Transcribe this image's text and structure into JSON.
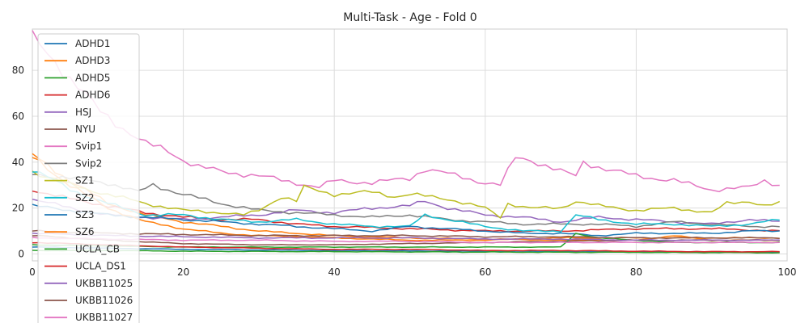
{
  "chart_data": {
    "type": "line",
    "title": "Multi-Task - Age - Fold 0",
    "xlabel": "",
    "ylabel": "",
    "xlim": [
      0,
      100
    ],
    "ylim": [
      -3,
      98
    ],
    "xticks": [
      0,
      20,
      40,
      60,
      80,
      100
    ],
    "yticks": [
      0,
      20,
      40,
      60,
      80
    ],
    "grid": true,
    "legend_position": "upper-left",
    "series": [
      {
        "name": "ADHD1",
        "color": "#1f77b4",
        "anchors": [
          [
            0,
            3
          ],
          [
            10,
            2.5
          ],
          [
            20,
            2
          ],
          [
            40,
            1.5
          ],
          [
            60,
            1.2
          ],
          [
            80,
            1.0
          ],
          [
            99,
            0.8
          ]
        ]
      },
      {
        "name": "ADHD3",
        "color": "#ff7f0e",
        "anchors": [
          [
            0,
            43
          ],
          [
            5,
            32
          ],
          [
            10,
            22
          ],
          [
            15,
            17
          ],
          [
            20,
            14
          ],
          [
            25,
            12
          ],
          [
            30,
            10
          ],
          [
            40,
            8
          ],
          [
            50,
            7
          ],
          [
            60,
            6.5
          ],
          [
            70,
            6
          ],
          [
            80,
            6
          ],
          [
            85,
            8
          ],
          [
            90,
            6
          ],
          [
            99,
            6
          ]
        ]
      },
      {
        "name": "ADHD5",
        "color": "#2ca02c",
        "anchors": [
          [
            0,
            1.5
          ],
          [
            10,
            1.5
          ],
          [
            20,
            1.2
          ],
          [
            40,
            1.0
          ],
          [
            60,
            0.8
          ],
          [
            80,
            0.7
          ],
          [
            99,
            0.5
          ]
        ]
      },
      {
        "name": "ADHD6",
        "color": "#d62728",
        "anchors": [
          [
            0,
            28
          ],
          [
            5,
            24
          ],
          [
            10,
            21
          ],
          [
            15,
            18
          ],
          [
            20,
            16
          ],
          [
            25,
            15
          ],
          [
            30,
            15
          ],
          [
            35,
            13
          ],
          [
            40,
            12
          ],
          [
            50,
            11
          ],
          [
            60,
            10
          ],
          [
            70,
            10
          ],
          [
            80,
            11
          ],
          [
            90,
            11
          ],
          [
            99,
            10
          ]
        ]
      },
      {
        "name": "HSJ",
        "color": "#9467bd",
        "anchors": [
          [
            0,
            24
          ],
          [
            5,
            20
          ],
          [
            10,
            17
          ],
          [
            20,
            15
          ],
          [
            30,
            17
          ],
          [
            35,
            19
          ],
          [
            40,
            18
          ],
          [
            45,
            20
          ],
          [
            50,
            21
          ],
          [
            52,
            23
          ],
          [
            55,
            20
          ],
          [
            60,
            17
          ],
          [
            65,
            16
          ],
          [
            70,
            14
          ],
          [
            75,
            16
          ],
          [
            80,
            15
          ],
          [
            85,
            14
          ],
          [
            90,
            13
          ],
          [
            95,
            15
          ],
          [
            99,
            14
          ]
        ]
      },
      {
        "name": "NYU",
        "color": "#8c564b",
        "anchors": [
          [
            0,
            8
          ],
          [
            10,
            6
          ],
          [
            20,
            4.5
          ],
          [
            30,
            4
          ],
          [
            40,
            4
          ],
          [
            50,
            4.5
          ],
          [
            60,
            5
          ],
          [
            70,
            5.5
          ],
          [
            80,
            6
          ],
          [
            90,
            6
          ],
          [
            99,
            6
          ]
        ]
      },
      {
        "name": "Svip1",
        "color": "#e377c2",
        "anchors": [
          [
            0,
            94
          ],
          [
            3,
            84
          ],
          [
            6,
            73
          ],
          [
            9,
            62
          ],
          [
            12,
            55
          ],
          [
            15,
            48
          ],
          [
            18,
            45
          ],
          [
            20,
            41
          ],
          [
            22,
            38
          ],
          [
            25,
            36
          ],
          [
            30,
            34
          ],
          [
            35,
            31
          ],
          [
            38,
            29
          ],
          [
            40,
            32
          ],
          [
            45,
            31
          ],
          [
            50,
            33
          ],
          [
            52,
            37
          ],
          [
            55,
            35
          ],
          [
            60,
            31
          ],
          [
            62,
            30
          ],
          [
            64,
            42
          ],
          [
            66,
            41
          ],
          [
            70,
            36
          ],
          [
            72,
            34
          ],
          [
            73,
            40
          ],
          [
            76,
            37
          ],
          [
            80,
            34
          ],
          [
            85,
            32
          ],
          [
            90,
            28
          ],
          [
            95,
            29
          ],
          [
            97,
            32
          ],
          [
            99,
            30
          ]
        ]
      },
      {
        "name": "Svip2",
        "color": "#7f7f7f",
        "anchors": [
          [
            0,
            35
          ],
          [
            5,
            33
          ],
          [
            10,
            31
          ],
          [
            14,
            27
          ],
          [
            16,
            30
          ],
          [
            20,
            26
          ],
          [
            25,
            22
          ],
          [
            30,
            19
          ],
          [
            35,
            18
          ],
          [
            40,
            17
          ],
          [
            45,
            16
          ],
          [
            50,
            17
          ],
          [
            55,
            15
          ],
          [
            60,
            14
          ],
          [
            65,
            13
          ],
          [
            70,
            13
          ],
          [
            75,
            13
          ],
          [
            80,
            12
          ],
          [
            85,
            14
          ],
          [
            90,
            13
          ],
          [
            95,
            12
          ],
          [
            99,
            12
          ]
        ]
      },
      {
        "name": "SZ1",
        "color": "#bcbd22",
        "anchors": [
          [
            0,
            36
          ],
          [
            5,
            30
          ],
          [
            10,
            26
          ],
          [
            15,
            22
          ],
          [
            20,
            19
          ],
          [
            25,
            18
          ],
          [
            28,
            17
          ],
          [
            30,
            19
          ],
          [
            33,
            25
          ],
          [
            35,
            23
          ],
          [
            36,
            29
          ],
          [
            40,
            26
          ],
          [
            45,
            27
          ],
          [
            48,
            25
          ],
          [
            50,
            26
          ],
          [
            55,
            24
          ],
          [
            60,
            20
          ],
          [
            62,
            16
          ],
          [
            63,
            22
          ],
          [
            66,
            20
          ],
          [
            70,
            20
          ],
          [
            72,
            23
          ],
          [
            75,
            21
          ],
          [
            80,
            19
          ],
          [
            85,
            20
          ],
          [
            90,
            18
          ],
          [
            92,
            22
          ],
          [
            95,
            23
          ],
          [
            97,
            21
          ],
          [
            99,
            22
          ]
        ]
      },
      {
        "name": "SZ2",
        "color": "#17becf",
        "anchors": [
          [
            0,
            37
          ],
          [
            5,
            28
          ],
          [
            10,
            22
          ],
          [
            15,
            17
          ],
          [
            20,
            17
          ],
          [
            25,
            15
          ],
          [
            30,
            14
          ],
          [
            35,
            15
          ],
          [
            40,
            13
          ],
          [
            45,
            12
          ],
          [
            50,
            12
          ],
          [
            52,
            17
          ],
          [
            55,
            15
          ],
          [
            60,
            12
          ],
          [
            65,
            10
          ],
          [
            70,
            10
          ],
          [
            72,
            17
          ],
          [
            75,
            15
          ],
          [
            80,
            13
          ],
          [
            85,
            13
          ],
          [
            90,
            12
          ],
          [
            95,
            13
          ],
          [
            99,
            15
          ]
        ]
      },
      {
        "name": "SZ3",
        "color": "#1f77b4",
        "anchors": [
          [
            0,
            21
          ],
          [
            5,
            19
          ],
          [
            10,
            17
          ],
          [
            15,
            16
          ],
          [
            20,
            15
          ],
          [
            25,
            14
          ],
          [
            30,
            13
          ],
          [
            35,
            12
          ],
          [
            40,
            11
          ],
          [
            45,
            10
          ],
          [
            50,
            12
          ],
          [
            55,
            11
          ],
          [
            60,
            10
          ],
          [
            65,
            9
          ],
          [
            70,
            9
          ],
          [
            75,
            8
          ],
          [
            80,
            9
          ],
          [
            85,
            9
          ],
          [
            90,
            9
          ],
          [
            95,
            10
          ],
          [
            99,
            10
          ]
        ]
      },
      {
        "name": "SZ6",
        "color": "#ff7f0e",
        "anchors": [
          [
            0,
            42
          ],
          [
            5,
            30
          ],
          [
            10,
            20
          ],
          [
            15,
            14
          ],
          [
            20,
            11
          ],
          [
            25,
            9
          ],
          [
            30,
            8
          ],
          [
            40,
            7
          ],
          [
            50,
            6
          ],
          [
            60,
            6
          ],
          [
            70,
            7
          ],
          [
            80,
            7
          ],
          [
            90,
            7
          ],
          [
            99,
            7
          ]
        ]
      },
      {
        "name": "UCLA_CB",
        "color": "#2ca02c",
        "anchors": [
          [
            0,
            4
          ],
          [
            10,
            3.5
          ],
          [
            20,
            3
          ],
          [
            30,
            3
          ],
          [
            40,
            3
          ],
          [
            50,
            3
          ],
          [
            60,
            3
          ],
          [
            70,
            3
          ],
          [
            72,
            9
          ],
          [
            75,
            7
          ],
          [
            80,
            6
          ],
          [
            85,
            5
          ],
          [
            90,
            5
          ],
          [
            99,
            5
          ]
        ]
      },
      {
        "name": "UCLA_DS1",
        "color": "#d62728",
        "anchors": [
          [
            0,
            5
          ],
          [
            10,
            4
          ],
          [
            20,
            3
          ],
          [
            30,
            2.5
          ],
          [
            40,
            2
          ],
          [
            50,
            2
          ],
          [
            60,
            1.5
          ],
          [
            70,
            1.5
          ],
          [
            80,
            1.2
          ],
          [
            90,
            1
          ],
          [
            99,
            1
          ]
        ]
      },
      {
        "name": "UKBB11025",
        "color": "#9467bd",
        "anchors": [
          [
            0,
            9
          ],
          [
            10,
            8
          ],
          [
            20,
            7.5
          ],
          [
            30,
            7
          ],
          [
            40,
            7
          ],
          [
            50,
            7
          ],
          [
            60,
            6.5
          ],
          [
            70,
            6.5
          ],
          [
            80,
            6
          ],
          [
            90,
            6
          ],
          [
            99,
            6
          ]
        ]
      },
      {
        "name": "UKBB11026",
        "color": "#8c564b",
        "anchors": [
          [
            0,
            10
          ],
          [
            10,
            9
          ],
          [
            20,
            8.5
          ],
          [
            30,
            8
          ],
          [
            40,
            8
          ],
          [
            50,
            8
          ],
          [
            60,
            7.5
          ],
          [
            70,
            7.5
          ],
          [
            80,
            7
          ],
          [
            90,
            7
          ],
          [
            99,
            7
          ]
        ]
      },
      {
        "name": "UKBB11027",
        "color": "#e377c2",
        "anchors": [
          [
            0,
            7
          ],
          [
            10,
            6.5
          ],
          [
            20,
            6
          ],
          [
            30,
            6
          ],
          [
            40,
            5.5
          ],
          [
            50,
            5.5
          ],
          [
            60,
            5
          ],
          [
            70,
            5
          ],
          [
            80,
            5
          ],
          [
            90,
            5
          ],
          [
            99,
            5
          ]
        ]
      }
    ]
  }
}
